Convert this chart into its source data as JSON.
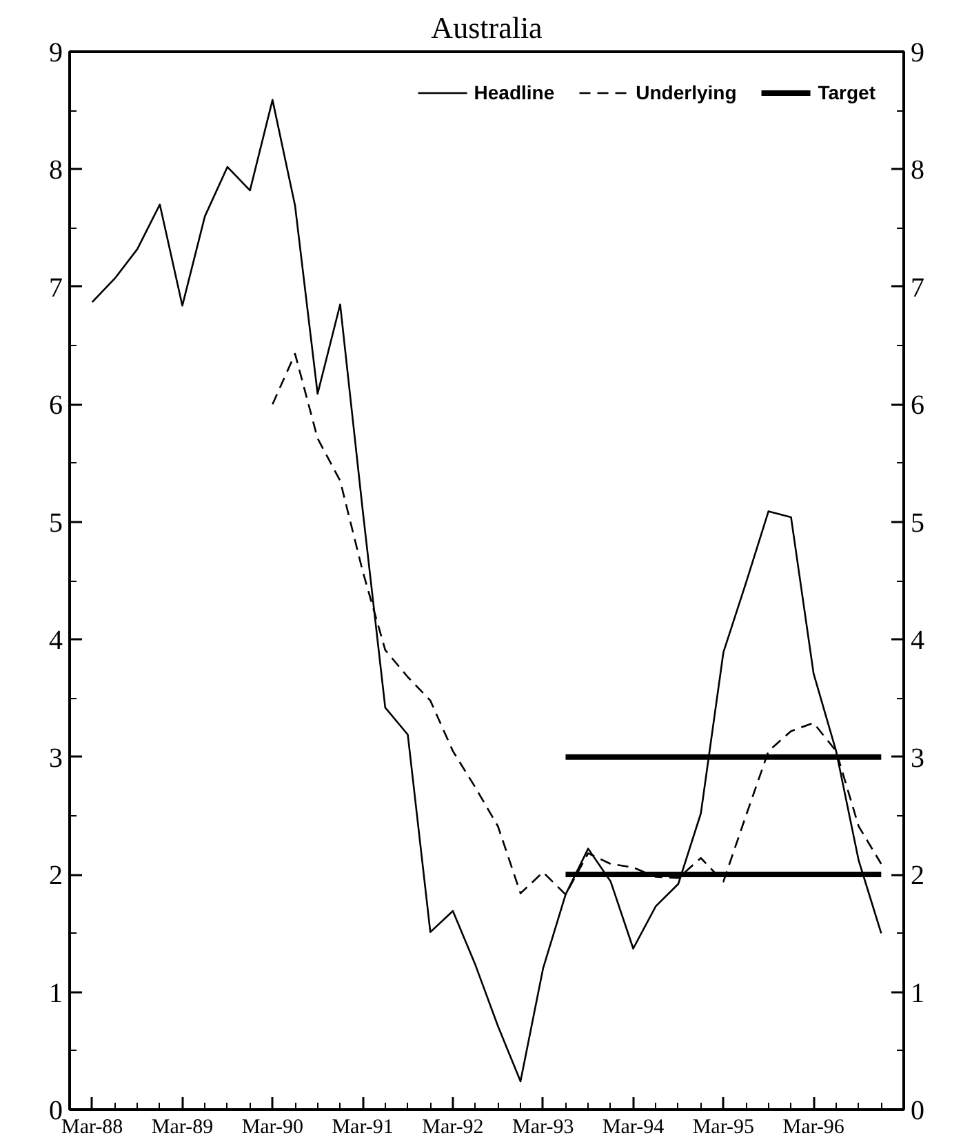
{
  "chart_data": {
    "type": "line",
    "title": "Australia",
    "x": [
      "1988-03",
      "1988-06",
      "1988-09",
      "1988-12",
      "1989-03",
      "1989-06",
      "1989-09",
      "1989-12",
      "1990-03",
      "1990-06",
      "1990-09",
      "1990-12",
      "1991-03",
      "1991-06",
      "1991-09",
      "1991-12",
      "1992-03",
      "1992-06",
      "1992-09",
      "1992-12",
      "1993-03",
      "1993-06",
      "1993-09",
      "1993-12",
      "1994-03",
      "1994-06",
      "1994-09",
      "1994-12",
      "1995-03",
      "1995-06",
      "1995-09",
      "1995-12",
      "1996-03",
      "1996-06",
      "1996-09",
      "1996-12"
    ],
    "series": [
      {
        "name": "Headline",
        "color": "#000000",
        "line_style": "solid",
        "values": [
          6.87,
          7.07,
          7.32,
          7.7,
          6.84,
          7.6,
          8.02,
          7.82,
          8.59,
          7.69,
          6.09,
          6.85,
          5.1,
          3.42,
          3.19,
          1.51,
          1.69,
          1.23,
          0.71,
          0.24,
          1.2,
          1.83,
          2.22,
          1.94,
          1.37,
          1.73,
          1.92,
          2.52,
          3.89,
          4.48,
          5.09,
          5.04,
          3.71,
          3.05,
          2.12,
          1.5
        ]
      },
      {
        "name": "Underlying",
        "color": "#000000",
        "line_style": "dashed",
        "values": [
          null,
          null,
          null,
          null,
          null,
          null,
          null,
          null,
          6.0,
          6.43,
          5.71,
          5.35,
          4.58,
          3.91,
          3.68,
          3.48,
          3.05,
          2.74,
          2.41,
          1.84,
          2.02,
          1.83,
          2.18,
          2.09,
          2.06,
          1.98,
          1.97,
          2.14,
          1.94,
          2.5,
          3.05,
          3.22,
          3.29,
          3.05,
          2.41,
          2.09
        ]
      },
      {
        "name": "Target",
        "color": "#000000",
        "line_style": "solid",
        "x": [
          "1993-06",
          "1996-12"
        ],
        "values": [
          2,
          2
        ]
      },
      {
        "color": "#000000",
        "line_style": "solid",
        "x": [
          "1993-06",
          "1996-12"
        ],
        "values": [
          3,
          3
        ]
      }
    ],
    "xlim": [
      "1987-12",
      "1997-03"
    ],
    "xticks": [
      {
        "value": "1988-03",
        "label": "Mar-88"
      },
      {
        "value": "1988-06",
        "label": null
      },
      {
        "value": "1988-09",
        "label": null
      },
      {
        "value": "1988-12",
        "label": null
      },
      {
        "value": "1989-03",
        "label": "Mar-89"
      },
      {
        "value": "1989-06",
        "label": null
      },
      {
        "value": "1989-09",
        "label": null
      },
      {
        "value": "1989-12",
        "label": null
      },
      {
        "value": "1990-03",
        "label": "Mar-90"
      },
      {
        "value": "1990-06",
        "label": null
      },
      {
        "value": "1990-09",
        "label": null
      },
      {
        "value": "1990-12",
        "label": null
      },
      {
        "value": "1991-03",
        "label": "Mar-91"
      },
      {
        "value": "1991-06",
        "label": null
      },
      {
        "value": "1991-09",
        "label": null
      },
      {
        "value": "1991-12",
        "label": null
      },
      {
        "value": "1992-03",
        "label": "Mar-92"
      },
      {
        "value": "1992-06",
        "label": null
      },
      {
        "value": "1992-09",
        "label": null
      },
      {
        "value": "1992-12",
        "label": null
      },
      {
        "value": "1993-03",
        "label": "Mar-93"
      },
      {
        "value": "1993-06",
        "label": null
      },
      {
        "value": "1993-09",
        "label": null
      },
      {
        "value": "1993-12",
        "label": null
      },
      {
        "value": "1994-03",
        "label": "Mar-94"
      },
      {
        "value": "1994-06",
        "label": null
      },
      {
        "value": "1994-09",
        "label": null
      },
      {
        "value": "1994-12",
        "label": null
      },
      {
        "value": "1995-03",
        "label": "Mar-95"
      },
      {
        "value": "1995-06",
        "label": null
      },
      {
        "value": "1995-09",
        "label": null
      },
      {
        "value": "1995-12",
        "label": null
      },
      {
        "value": "1996-03",
        "label": "Mar-96"
      },
      {
        "value": "1996-06",
        "label": null
      },
      {
        "value": "1996-09",
        "label": null
      },
      {
        "value": "1996-12",
        "label": null
      }
    ],
    "ylim": [
      0,
      9
    ],
    "yticks": [
      0,
      {
        "value": 0.5,
        "label": null
      },
      1,
      {
        "value": 1.5,
        "label": null
      },
      2,
      {
        "value": 2.5,
        "label": null
      },
      3,
      {
        "value": 3.5,
        "label": null
      },
      4,
      {
        "value": 4.5,
        "label": null
      },
      5,
      {
        "value": 5.5,
        "label": null
      },
      6,
      {
        "value": 6.5,
        "label": null
      },
      7,
      {
        "value": 7.5,
        "label": null
      },
      8,
      {
        "value": 8.5,
        "label": null
      },
      9
    ],
    "y2lim": [
      0,
      9
    ],
    "y2ticks": [
      0,
      {
        "value": 0.5,
        "label": null
      },
      1,
      {
        "value": 1.5,
        "label": null
      },
      2,
      {
        "value": 2.5,
        "label": null
      },
      3,
      {
        "value": 3.5,
        "label": null
      },
      4,
      {
        "value": 4.5,
        "label": null
      },
      5,
      {
        "value": 5.5,
        "label": null
      },
      6,
      {
        "value": 6.5,
        "label": null
      },
      7,
      {
        "value": 7.5,
        "label": null
      },
      8,
      {
        "value": 8.5,
        "label": null
      },
      9
    ],
    "grid": false,
    "legend": "top right",
    "marker": "none"
  }
}
